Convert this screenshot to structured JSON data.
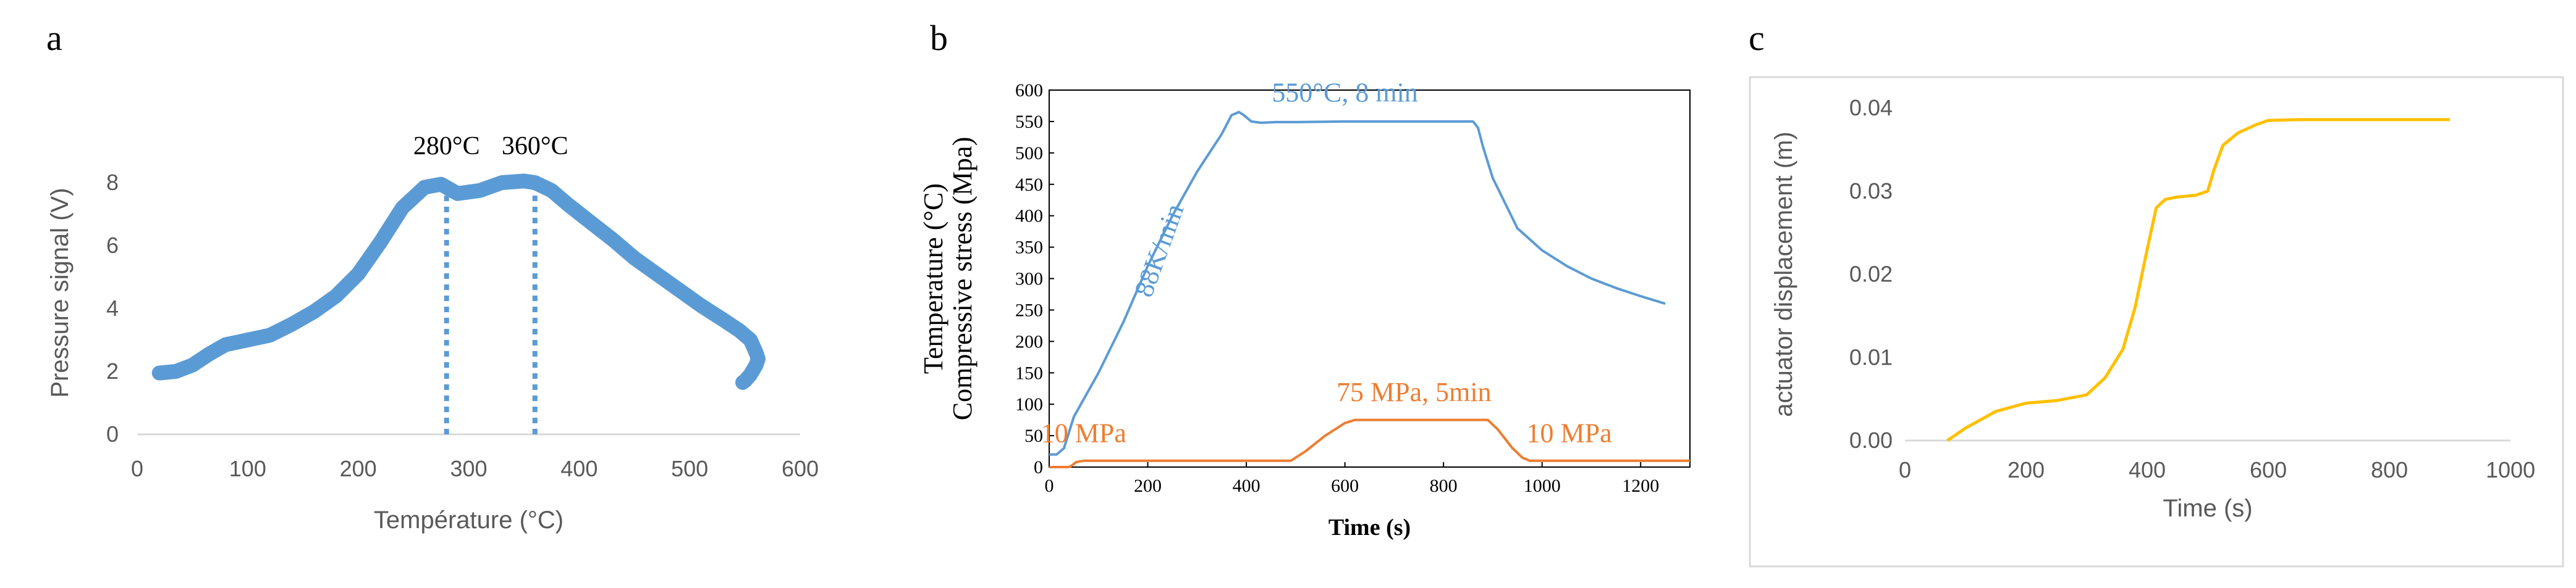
{
  "panels": [
    {
      "label": "a"
    },
    {
      "label": "b"
    },
    {
      "label": "c"
    }
  ],
  "chart_data": [
    {
      "type": "scatter",
      "xlabel": "Température (°C)",
      "ylabel": "Pressure signal (V)",
      "xlim": [
        0,
        600
      ],
      "ylim": [
        0,
        9
      ],
      "xticks": [
        0,
        100,
        200,
        300,
        400,
        500,
        600
      ],
      "yticks": [
        0,
        2,
        4,
        6,
        8
      ],
      "color": "#5b9bd5",
      "grid": false,
      "series": [
        {
          "x": [
            20,
            35,
            50,
            65,
            80,
            100,
            120,
            140,
            160,
            180,
            200,
            220,
            240,
            260,
            275,
            290,
            310,
            330,
            350,
            360,
            375,
            390,
            410,
            430,
            450,
            470,
            490,
            510,
            530,
            545,
            555,
            560,
            562,
            560,
            555,
            550,
            548
          ],
          "y": [
            1.95,
            2.0,
            2.2,
            2.55,
            2.85,
            3.0,
            3.15,
            3.5,
            3.9,
            4.4,
            5.1,
            6.1,
            7.2,
            7.85,
            7.95,
            7.65,
            7.75,
            8.0,
            8.05,
            8.0,
            7.75,
            7.3,
            6.75,
            6.2,
            5.6,
            5.1,
            4.6,
            4.1,
            3.65,
            3.3,
            3.0,
            2.6,
            2.4,
            2.2,
            1.9,
            1.7,
            1.65
          ]
        }
      ],
      "markers": [
        {
          "x": 280,
          "label": "280°C"
        },
        {
          "x": 360,
          "label": "360°C"
        }
      ]
    },
    {
      "type": "line",
      "xlabel": "Time (s)",
      "ylabel_lines": [
        "Temperature (°C)",
        "Compressive stress (Mpa)"
      ],
      "xlim": [
        0,
        1300
      ],
      "ylim": [
        0,
        600
      ],
      "xticks": [
        0,
        200,
        400,
        600,
        800,
        1000,
        1200
      ],
      "yticks": [
        0,
        50,
        100,
        150,
        200,
        250,
        300,
        350,
        400,
        450,
        500,
        550,
        600
      ],
      "grid": false,
      "series": [
        {
          "color": "#5b9bd5",
          "x": [
            0,
            15,
            30,
            50,
            100,
            150,
            200,
            250,
            300,
            350,
            370,
            385,
            395,
            410,
            430,
            460,
            500,
            600,
            700,
            800,
            860,
            870,
            880,
            900,
            950,
            1000,
            1050,
            1100,
            1150,
            1200,
            1250
          ],
          "y": [
            20,
            20,
            30,
            80,
            150,
            230,
            320,
            400,
            470,
            530,
            560,
            565,
            560,
            550,
            548,
            549,
            549,
            550,
            550,
            550,
            550,
            540,
            510,
            460,
            380,
            345,
            320,
            300,
            285,
            272,
            260
          ]
        },
        {
          "color": "#ed7d31",
          "x": [
            0,
            40,
            45,
            55,
            70,
            490,
            520,
            560,
            600,
            620,
            700,
            800,
            890,
            910,
            940,
            960,
            975,
            1000,
            1100,
            1200,
            1300
          ],
          "y": [
            0,
            0,
            2,
            8,
            10,
            10,
            25,
            50,
            70,
            75,
            75,
            75,
            75,
            60,
            30,
            15,
            10,
            10,
            10,
            10,
            10
          ]
        }
      ],
      "annotations": [
        {
          "text": "550°C, 8 min",
          "color": "#5b9bd5",
          "x": 600,
          "y": 582
        },
        {
          "text": "88K/min",
          "color": "#5b9bd5",
          "x": 240,
          "y": 340,
          "rotate": -70
        },
        {
          "text": "75 MPa, 5min",
          "color": "#ed7d31",
          "x": 740,
          "y": 105
        },
        {
          "text": "10 MPa",
          "color": "#ed7d31",
          "x": 70,
          "y": 40
        },
        {
          "text": "10 MPa",
          "color": "#ed7d31",
          "x": 1055,
          "y": 40
        }
      ]
    },
    {
      "type": "line",
      "xlabel": "Time (s)",
      "ylabel": "actuator displacement (m)",
      "xlim": [
        0,
        1000
      ],
      "ylim": [
        0,
        0.04
      ],
      "xticks": [
        0,
        200,
        400,
        600,
        800,
        1000
      ],
      "yticks": [
        0.0,
        0.01,
        0.02,
        0.03,
        0.04
      ],
      "ytick_labels": [
        "0.00",
        "0.01",
        "0.02",
        "0.03",
        "0.04"
      ],
      "grid": false,
      "series": [
        {
          "color": "#ffc000",
          "x": [
            70,
            100,
            150,
            200,
            250,
            300,
            330,
            360,
            380,
            400,
            415,
            430,
            450,
            480,
            500,
            510,
            525,
            550,
            580,
            600,
            650,
            700,
            800,
            900
          ],
          "y": [
            0,
            0.0015,
            0.0035,
            0.0045,
            0.0048,
            0.0055,
            0.0075,
            0.011,
            0.016,
            0.023,
            0.028,
            0.029,
            0.0293,
            0.0295,
            0.03,
            0.0325,
            0.0355,
            0.037,
            0.038,
            0.0385,
            0.0386,
            0.0386,
            0.0386,
            0.0386
          ]
        }
      ]
    }
  ]
}
